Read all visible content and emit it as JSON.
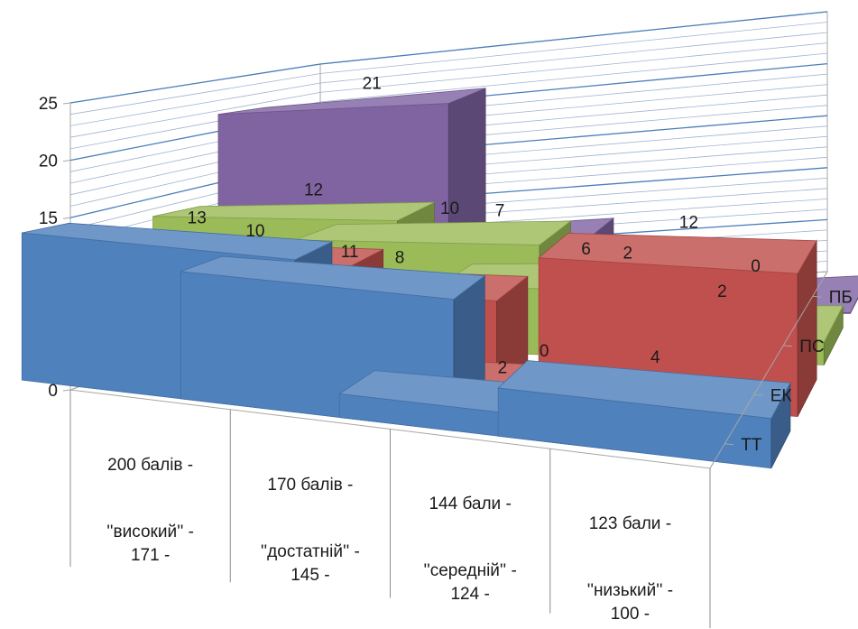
{
  "chart_data": {
    "type": "bar",
    "subtype": "3d-column",
    "categories": [
      [
        "200  балів  -",
        "''високий''   -",
        "171 -"
      ],
      [
        "170  балів  -",
        "''достатній'' -",
        "145 -"
      ],
      [
        "144  бали  -",
        "''середній''  -",
        "124 -"
      ],
      [
        "123  бали  -",
        "''низький''   -",
        "100 -"
      ]
    ],
    "series": [
      {
        "name": "ТТ",
        "color": "#4f81bd",
        "values": [
          13,
          11,
          2,
          4
        ]
      },
      {
        "name": "ЕК",
        "color": "#c0504d",
        "values": [
          10,
          8,
          0,
          12
        ]
      },
      {
        "name": "ПС",
        "color": "#9bbb59",
        "values": [
          12,
          10,
          6,
          2
        ]
      },
      {
        "name": "ПБ",
        "color": "#8064a2",
        "values": [
          21,
          7,
          2,
          0
        ]
      }
    ],
    "ylim": [
      0,
      25
    ],
    "yticks": [
      0,
      5,
      10,
      15,
      20,
      25
    ],
    "grid": true
  }
}
